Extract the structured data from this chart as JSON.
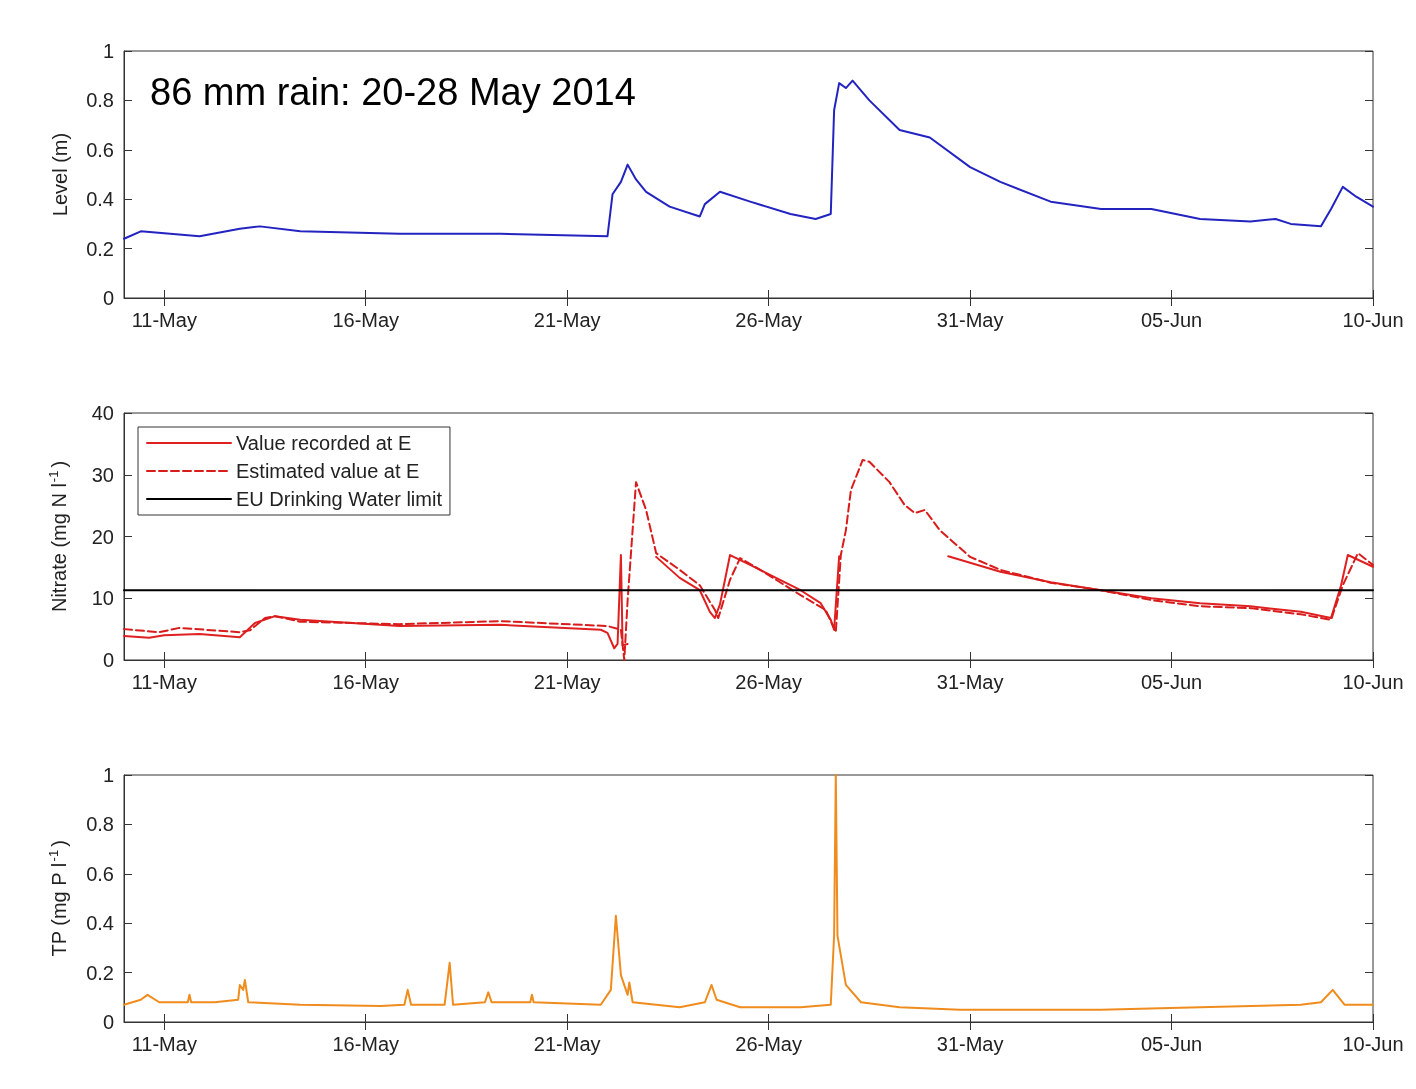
{
  "chart_data": [
    {
      "type": "line",
      "ylabel": "Level (m)",
      "annotations": [
        "86 mm rain: 20-28 May 2014"
      ],
      "marker": "none",
      "grid": false,
      "xlim": [
        "2014-05-10",
        "2014-06-10"
      ],
      "xticks": [
        {
          "value": "2014-05-11",
          "label": "11-May"
        },
        {
          "value": "2014-05-16",
          "label": "16-May"
        },
        {
          "value": "2014-05-21",
          "label": "21-May"
        },
        {
          "value": "2014-05-26",
          "label": "26-May"
        },
        {
          "value": "2014-05-31",
          "label": "31-May"
        },
        {
          "value": "2014-06-05",
          "label": "05-Jun"
        },
        {
          "value": "2014-06-10",
          "label": "10-Jun"
        }
      ],
      "ylim": [
        0,
        1
      ],
      "yticks": [
        0,
        0.2,
        0.4,
        0.6,
        0.8,
        1
      ],
      "series": [
        {
          "color": "#2323c0",
          "line_style": "solid",
          "x": [
            "2014-05-10T00:00",
            "2014-05-10T10:00",
            "2014-05-11T21:00",
            "2014-05-12T21:00",
            "2014-05-13T09:00",
            "2014-05-14T09:00",
            "2014-05-16T20:00",
            "2014-05-19T08:00",
            "2014-05-22T00:00",
            "2014-05-22T03:00",
            "2014-05-22T08:00",
            "2014-05-22T12:00",
            "2014-05-22T17:00",
            "2014-05-22T23:00",
            "2014-05-23T13:00",
            "2014-05-24T07:00",
            "2014-05-24T10:00",
            "2014-05-24T19:00",
            "2014-05-25T13:00",
            "2014-05-26T13:00",
            "2014-05-27T04:00",
            "2014-05-27T13:00",
            "2014-05-27T15:00",
            "2014-05-27T18:00",
            "2014-05-27T22:00",
            "2014-05-28T02:00",
            "2014-05-28T12:00",
            "2014-05-29T06:00",
            "2014-05-30T00:00",
            "2014-05-31T00:00",
            "2014-05-31T18:00",
            "2014-06-02T00:00",
            "2014-06-03T06:00",
            "2014-06-04T12:00",
            "2014-06-05T17:00",
            "2014-06-06T23:00",
            "2014-06-07T14:00",
            "2014-06-07T23:00",
            "2014-06-08T17:00",
            "2014-06-08T23:00",
            "2014-06-09T06:00",
            "2014-06-09T14:00",
            "2014-06-10T00:00"
          ],
          "values": [
            0.24,
            0.27,
            0.25,
            0.28,
            0.29,
            0.27,
            0.26,
            0.26,
            0.25,
            0.42,
            0.47,
            0.54,
            0.48,
            0.43,
            0.37,
            0.33,
            0.38,
            0.43,
            0.39,
            0.34,
            0.32,
            0.34,
            0.76,
            0.87,
            0.85,
            0.88,
            0.8,
            0.68,
            0.65,
            0.53,
            0.47,
            0.39,
            0.36,
            0.36,
            0.32,
            0.31,
            0.32,
            0.3,
            0.29,
            0.36,
            0.45,
            0.41,
            0.37
          ]
        }
      ]
    },
    {
      "type": "line",
      "ylabel": "Nitrate (mg N l$^{-1}$)",
      "marker": "none",
      "grid": false,
      "legend": "top left",
      "xlim": [
        "2014-05-10",
        "2014-06-10"
      ],
      "xticks": [
        {
          "value": "2014-05-11",
          "label": "11-May"
        },
        {
          "value": "2014-05-16",
          "label": "16-May"
        },
        {
          "value": "2014-05-21",
          "label": "21-May"
        },
        {
          "value": "2014-05-26",
          "label": "26-May"
        },
        {
          "value": "2014-05-31",
          "label": "31-May"
        },
        {
          "value": "2014-06-05",
          "label": "05-Jun"
        },
        {
          "value": "2014-06-10",
          "label": "10-Jun"
        }
      ],
      "ylim": [
        0,
        40
      ],
      "yticks": [
        0,
        10,
        20,
        30,
        40
      ],
      "series": [
        {
          "name": "Value recorded at E",
          "color": "#e02020",
          "line_style": "solid",
          "x": [
            "2014-05-10T00:00",
            "2014-05-10T15:00",
            "2014-05-11T00:00",
            "2014-05-11T21:00",
            "2014-05-12T21:00",
            "2014-05-13T06:00",
            "2014-05-13T18:00",
            "2014-05-14T09:00",
            "2014-05-16T20:00",
            "2014-05-19T08:00",
            "2014-05-21T20:00",
            "2014-05-22T00:00",
            "2014-05-22T04:00",
            "2014-05-22T06:00",
            "2014-05-22T08:00",
            "2014-05-22T09:00",
            "2014-05-22T12:00",
            "2014-05-23T00:00",
            "2014-05-23T05:00",
            "2014-05-23T19:00",
            "2014-05-24T07:00",
            "2014-05-24T13:00",
            "2014-05-24T16:00",
            "2014-05-24T19:00",
            "2014-05-25T01:00",
            "2014-05-25T13:00",
            "2014-05-26T19:00",
            "2014-05-27T07:00",
            "2014-05-27T13:00",
            "2014-05-27T15:00",
            "2014-05-27T18:00",
            "2014-05-28T12:00",
            "2014-05-30T11:00",
            "2014-05-31T18:00",
            "2014-06-02T00:00",
            "2014-06-03T06:00",
            "2014-06-04T12:00",
            "2014-06-05T17:00",
            "2014-06-06T23:00",
            "2014-06-08T05:00",
            "2014-06-08T23:00",
            "2014-06-09T05:00",
            "2014-06-09T09:00",
            "2014-06-10T00:00"
          ],
          "values": [
            3.9,
            3.6,
            4.0,
            4.2,
            3.7,
            6.0,
            7.1,
            6.5,
            5.5,
            5.7,
            4.9,
            4.4,
            1.9,
            2.6,
            17,
            2.4,
            2.6,
            null,
            16.7,
            13.3,
            11.3,
            7.8,
            6.8,
            9,
            17,
            15.4,
            11.3,
            9.2,
            6.5,
            4.9,
            16.8,
            null,
            16.8,
            14.3,
            12.6,
            11.3,
            10,
            9.2,
            8.7,
            7.8,
            6.8,
            12.1,
            17,
            15.1
          ]
        },
        {
          "name": "Estimated value at E",
          "color": "#d81c1c",
          "line_style": "dashed",
          "x": [
            "2014-05-10T00:00",
            "2014-05-10T21:00",
            "2014-05-11T09:00",
            "2014-05-12T21:00",
            "2014-05-13T03:00",
            "2014-05-13T12:00",
            "2014-05-13T18:00",
            "2014-05-14T09:00",
            "2014-05-16T20:00",
            "2014-05-19T08:00",
            "2014-05-22T00:00",
            "2014-05-22T08:00",
            "2014-05-22T10:00",
            "2014-05-22T12:00",
            "2014-05-22T17:00",
            "2014-05-22T23:00",
            "2014-05-23T05:00",
            "2014-05-23T19:00",
            "2014-05-24T07:00",
            "2014-05-24T16:00",
            "2014-05-24T18:00",
            "2014-05-25T01:00",
            "2014-05-25T07:00",
            "2014-05-25T19:00",
            "2014-05-26T19:00",
            "2014-05-27T10:00",
            "2014-05-27T16:00",
            "2014-05-27T19:00",
            "2014-05-27T22:00",
            "2014-05-28T01:00",
            "2014-05-28T08:00",
            "2014-05-28T12:00",
            "2014-05-29T00:00",
            "2014-05-29T09:00",
            "2014-05-29T15:00",
            "2014-05-29T21:00",
            "2014-05-30T06:00",
            "2014-05-31T00:00",
            "2014-05-31T18:00",
            "2014-06-02T00:00",
            "2014-06-03T06:00",
            "2014-06-04T12:00",
            "2014-06-05T17:00",
            "2014-06-06T23:00",
            "2014-06-08T05:00",
            "2014-06-08T23:00",
            "2014-06-09T06:00",
            "2014-06-09T15:00",
            "2014-06-10T00:00"
          ],
          "values": [
            5.0,
            4.5,
            5.2,
            4.5,
            4.8,
            6.8,
            7.1,
            6.2,
            5.8,
            6.3,
            5.5,
            4.9,
            0,
            9.7,
            28.8,
            24.3,
            17.3,
            14.6,
            12.1,
            8.1,
            6.8,
            13,
            16.5,
            14.6,
            10.5,
            8.1,
            4.5,
            17,
            21,
            27.5,
            32.4,
            32.1,
            28.8,
            25.1,
            23.8,
            24.3,
            21,
            16.7,
            14.6,
            12.5,
            11.3,
            9.7,
            8.7,
            8.4,
            7.4,
            6.5,
            12.1,
            17.3,
            15.4
          ]
        },
        {
          "name": "EU Drinking Water limit",
          "color": "#000000",
          "line_style": "solid",
          "x": [
            "2014-05-10",
            "2014-06-10"
          ],
          "values": [
            11.3,
            11.3
          ]
        }
      ]
    },
    {
      "type": "line",
      "ylabel": "TP (mg P l$^{-1}$)",
      "marker": "none",
      "grid": false,
      "xlim": [
        "2014-05-10",
        "2014-06-10"
      ],
      "xticks": [
        {
          "value": "2014-05-11",
          "label": "11-May"
        },
        {
          "value": "2014-05-16",
          "label": "16-May"
        },
        {
          "value": "2014-05-21",
          "label": "21-May"
        },
        {
          "value": "2014-05-26",
          "label": "26-May"
        },
        {
          "value": "2014-05-31",
          "label": "31-May"
        },
        {
          "value": "2014-06-05",
          "label": "05-Jun"
        },
        {
          "value": "2014-06-10",
          "label": "10-Jun"
        }
      ],
      "ylim": [
        0,
        1
      ],
      "yticks": [
        0,
        0.2,
        0.4,
        0.6,
        0.8,
        1
      ],
      "series": [
        {
          "color": "#f08c1e",
          "line_style": "solid",
          "x": [
            "2014-05-10T00:00",
            "2014-05-10T10:00",
            "2014-05-10T14:00",
            "2014-05-10T21:00",
            "2014-05-11T14:00",
            "2014-05-11T15:00",
            "2014-05-11T16:00",
            "2014-05-12T06:00",
            "2014-05-12T20:00",
            "2014-05-12T21:00",
            "2014-05-12T23:00",
            "2014-05-13T00:00",
            "2014-05-13T02:00",
            "2014-05-14T09:00",
            "2014-05-16T09:00",
            "2014-05-16T23:00",
            "2014-05-17T01:00",
            "2014-05-17T03:00",
            "2014-05-17T23:00",
            "2014-05-18T02:00",
            "2014-05-18T04:00",
            "2014-05-18T23:00",
            "2014-05-19T01:00",
            "2014-05-19T03:00",
            "2014-05-20T02:00",
            "2014-05-20T03:00",
            "2014-05-20T04:00",
            "2014-05-21T20:00",
            "2014-05-22T02:00",
            "2014-05-22T05:00",
            "2014-05-22T08:00",
            "2014-05-22T12:00",
            "2014-05-22T13:00",
            "2014-05-22T15:00",
            "2014-05-23T19:00",
            "2014-05-24T10:00",
            "2014-05-24T14:00",
            "2014-05-24T17:00",
            "2014-05-25T07:00",
            "2014-05-26T19:00",
            "2014-05-27T13:00",
            "2014-05-27T15:00",
            "2014-05-27T16:00",
            "2014-05-27T17:00",
            "2014-05-27T22:00",
            "2014-05-28T07:00",
            "2014-05-29T06:00",
            "2014-05-30T18:00",
            "2014-05-31T18:00",
            "2014-06-03T06:00",
            "2014-06-05T17:00",
            "2014-06-08T05:00",
            "2014-06-08T17:00",
            "2014-06-09T00:00",
            "2014-06-09T07:00",
            "2014-06-10T00:00"
          ],
          "values": [
            0.07,
            0.09,
            0.11,
            0.08,
            0.08,
            0.11,
            0.08,
            0.08,
            0.09,
            0.15,
            0.13,
            0.17,
            0.08,
            0.07,
            0.065,
            0.07,
            0.13,
            0.07,
            0.07,
            0.24,
            0.07,
            0.08,
            0.12,
            0.08,
            0.08,
            0.11,
            0.08,
            0.07,
            0.13,
            0.43,
            0.19,
            0.11,
            0.16,
            0.08,
            0.06,
            0.08,
            0.15,
            0.09,
            0.06,
            0.06,
            0.07,
            0.35,
            1.0,
            0.35,
            0.15,
            0.08,
            0.06,
            0.05,
            0.05,
            0.05,
            0.06,
            0.07,
            0.08,
            0.13,
            0.07,
            0.07
          ]
        }
      ]
    }
  ]
}
